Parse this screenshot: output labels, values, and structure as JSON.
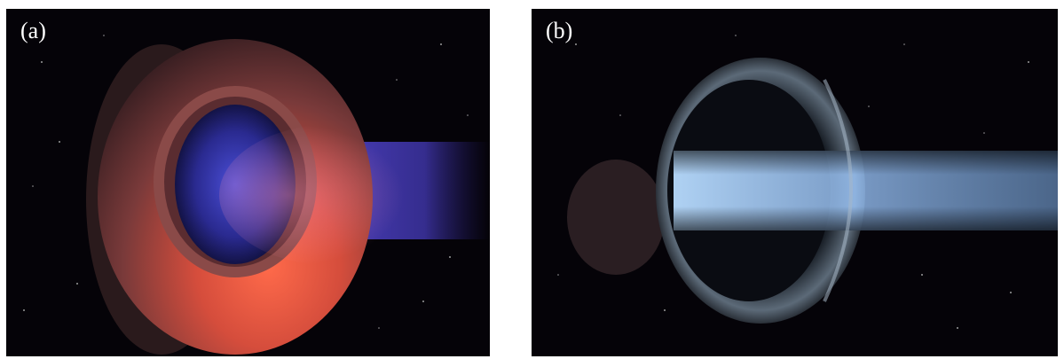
{
  "panels": [
    {
      "label": "(a)",
      "plume_color": "#5b4de0",
      "ring_color": "#d04a3c"
    },
    {
      "label": "(b)",
      "plume_color": "#9cc8ff",
      "ring_color": "#5c6a78"
    }
  ],
  "background_color": "#050308"
}
